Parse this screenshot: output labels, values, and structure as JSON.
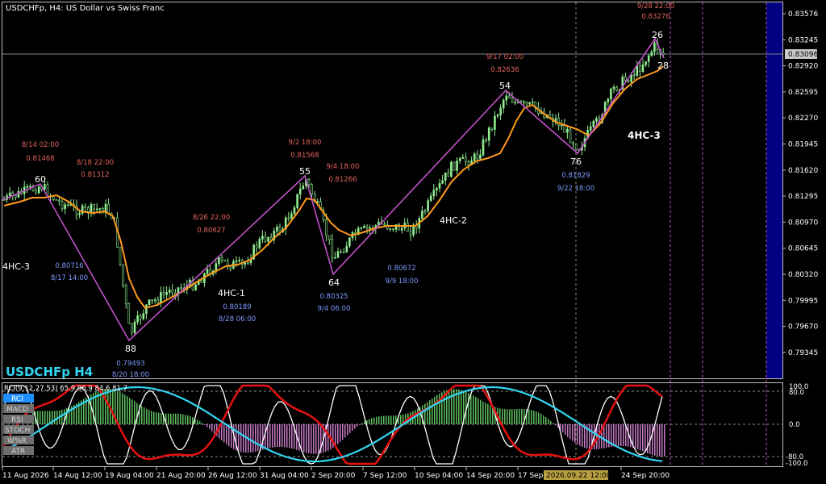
{
  "header": {
    "title": "USDCHFp, H4:  US Dollar vs Swiss Franc",
    "symbol_label": "USDCHFp H4"
  },
  "price_axis": {
    "labels": [
      "0.83576",
      "0.83245",
      "0.82920",
      "0.82595",
      "0.82270",
      "0.81945",
      "0.81620",
      "0.81295",
      "0.80970",
      "0.80645",
      "0.80320",
      "0.79995",
      "0.79670",
      "0.79345"
    ],
    "current_price": "0.83096"
  },
  "time_axis": {
    "labels": [
      "11 Aug 2026",
      "14 Aug 12:00",
      "19 Aug 04:00",
      "21 Aug 20:00",
      "26 Aug 12:00",
      "31 Aug 04:00",
      "2 Sep 20:00",
      "7 Sep 12:00",
      "10 Sep 04:00",
      "14 Sep 20:00",
      "17 Sep",
      "24 Sep 20:00"
    ],
    "cursor_label": "2026.09.22 12:00"
  },
  "indicator": {
    "header": "RCI(9,12,27,53) 65.9 96.9 84.6 81.7",
    "levels": [
      "100.0",
      "80.0",
      "0.0",
      "-80.0",
      "-100.0"
    ],
    "buttons": [
      "RCI",
      "MACD",
      "RSI",
      "STOCH",
      "W%R",
      "ATR"
    ]
  },
  "annotations": {
    "peaks": [
      {
        "count": "60",
        "time": "8/14 02:00",
        "price": "0.81468"
      },
      {
        "count": "",
        "time": "8/18 22:00",
        "price": "0.81312"
      },
      {
        "count": "",
        "time": "8/26 22:00",
        "price": "0.80627"
      },
      {
        "count": "55",
        "time": "9/2 18:00",
        "price": "0.81568"
      },
      {
        "count": "",
        "time": "9/4 18:00",
        "price": "0.81266"
      },
      {
        "count": "54",
        "time": "9/17 02:00",
        "price": "0.82636"
      },
      {
        "count": "26",
        "time": "9/28 22:00",
        "price": "0.83276"
      }
    ],
    "troughs": [
      {
        "count": "",
        "price": "0.80716",
        "time": "8/17 14:00"
      },
      {
        "count": "88",
        "price": "0.79493",
        "time": "8/20 18:00"
      },
      {
        "count": "",
        "price": "0.80189",
        "time": "8/28 06:00"
      },
      {
        "count": "64",
        "price": "0.80325",
        "time": "9/4 06:00"
      },
      {
        "count": "",
        "price": "0.80672",
        "time": "9/9 18:00"
      },
      {
        "count": "76",
        "price": "0.81829",
        "time": "9/22 18:00"
      },
      {
        "count": "28",
        "price": "",
        "time": ""
      }
    ],
    "waves": [
      "4HC-3",
      "4HC-1",
      "4HC-2",
      "4HC-3"
    ]
  },
  "colors": {
    "background": "#000000",
    "zigzag": "#c050c8",
    "ma": "#ff9a1e",
    "candle": "#90ee90",
    "peak_text": "#e3655a",
    "trough_text": "#7f99ff",
    "panel_right": "#000080",
    "rci_cyan": "#33d6f2",
    "rci_red": "#e81010"
  }
}
